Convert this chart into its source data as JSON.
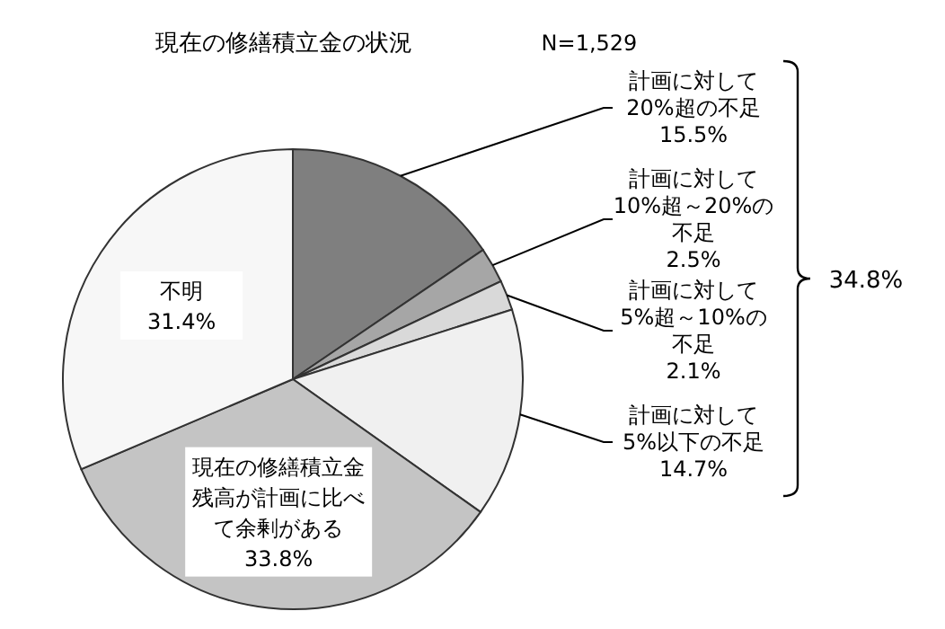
{
  "chart_data": {
    "type": "pie",
    "title": "現在の修繕積立金の状況",
    "categories": [
      "計画に対して20%超の不足",
      "計画に対して10%超～20%の不足",
      "計画に対して5%超～10%の不足",
      "計画に対して5%以下の不足",
      "現在の修繕積立金残高が計画に比べて余剰がある",
      "不明"
    ],
    "values": [
      15.5,
      2.5,
      2.1,
      14.7,
      33.8,
      31.4
    ],
    "value_labels": [
      "15.5%",
      "2.5%",
      "2.1%",
      "14.7%",
      "33.8%",
      "31.4%"
    ],
    "colors": [
      "#7f7f7f",
      "#a6a6a6",
      "#d9d9d9",
      "#f0f0f0",
      "#c4c4c4",
      "#f7f7f7"
    ],
    "annotations": [
      "N=1,529",
      "34.8%"
    ]
  }
}
